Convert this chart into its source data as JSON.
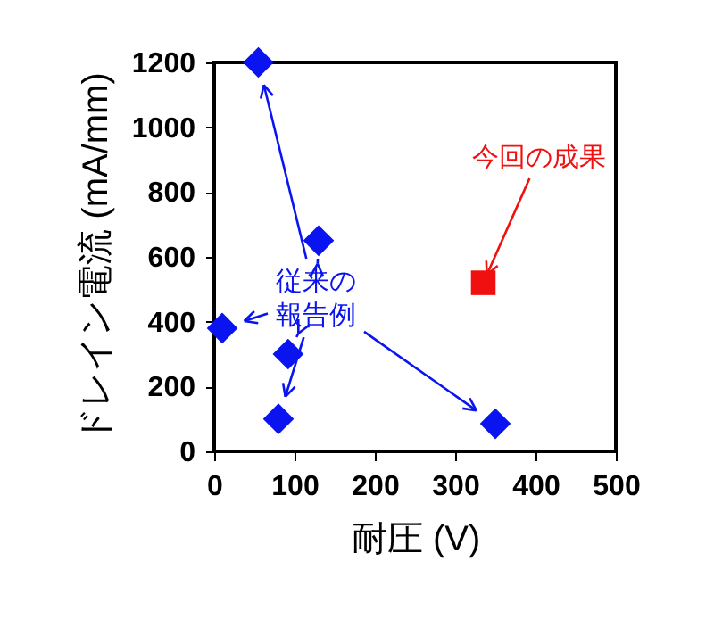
{
  "chart_data": {
    "type": "scatter",
    "xlabel": "耐圧 (V)",
    "ylabel": "ドレイン電流 (mA/mm)",
    "xlim": [
      0,
      500
    ],
    "xticks": [
      0,
      100,
      200,
      300,
      400,
      500
    ],
    "ylim": [
      0,
      1200
    ],
    "yticks": [
      0,
      200,
      400,
      600,
      800,
      1000,
      1200
    ],
    "grid": false,
    "series": [
      {
        "color": "#0a14f0",
        "marker": "diamond",
        "x": [
          10,
          55,
          130,
          92,
          80,
          350
        ],
        "values": [
          380,
          1200,
          650,
          300,
          100,
          85
        ]
      },
      {
        "color": "#f01010",
        "marker": "square",
        "x": [
          335
        ],
        "values": [
          520
        ]
      }
    ],
    "annotations": [
      "従来の報告例",
      {
        "text": "今回の成果",
        "x": 335,
        "y": 520
      }
    ]
  }
}
